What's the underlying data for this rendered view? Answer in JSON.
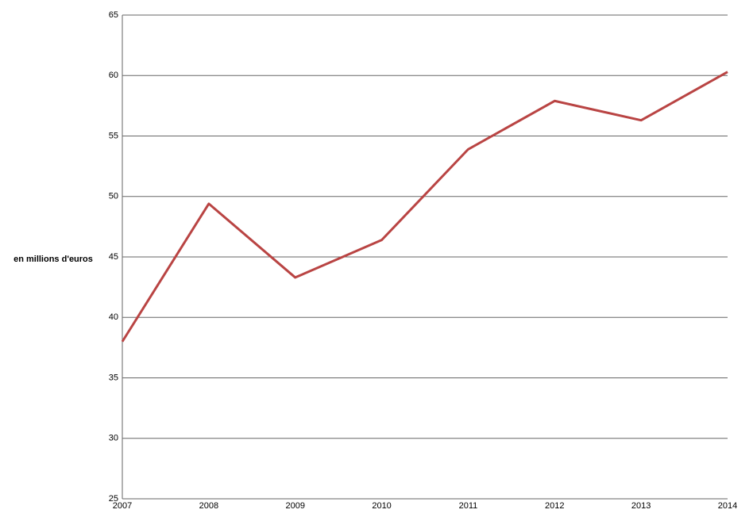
{
  "chart_data": {
    "type": "line",
    "y_label": "en millions d'euros",
    "categories": [
      "2007",
      "2008",
      "2009",
      "2010",
      "2011",
      "2012",
      "2013",
      "2014"
    ],
    "values": [
      38.0,
      49.4,
      43.3,
      46.4,
      53.9,
      57.9,
      56.3,
      60.3
    ],
    "color": "#b94443",
    "ylim": [
      25,
      65
    ],
    "yticks": [
      25,
      30,
      35,
      40,
      45,
      50,
      55,
      60,
      65
    ],
    "grid": true
  }
}
